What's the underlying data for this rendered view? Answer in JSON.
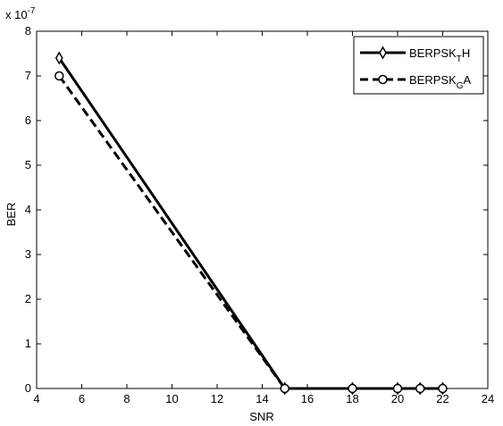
{
  "chart_data": {
    "type": "line",
    "xlabel": "SNR",
    "ylabel": "BER",
    "y_exponent_label": "x 10",
    "y_exponent_power": "-7",
    "xlim": [
      4,
      24
    ],
    "ylim": [
      0,
      8
    ],
    "xticks": [
      "4",
      "6",
      "8",
      "10",
      "12",
      "14",
      "16",
      "18",
      "20",
      "22",
      "24"
    ],
    "yticks": [
      "0",
      "1",
      "2",
      "3",
      "4",
      "5",
      "6",
      "7",
      "8"
    ],
    "grid": false,
    "legend_position": "top-right",
    "series": [
      {
        "name_main": "BERPSK",
        "name_sub": "T",
        "name_tail": "H",
        "line_style": "solid",
        "marker": "diamond",
        "color": "#000000",
        "x": [
          5,
          15,
          18,
          20,
          21,
          22
        ],
        "y": [
          7.4,
          0,
          0,
          0,
          0,
          0
        ]
      },
      {
        "name_main": "BERPSK",
        "name_sub": "G",
        "name_tail": "A",
        "line_style": "dashed",
        "marker": "circle",
        "color": "#000000",
        "x": [
          5,
          15,
          18,
          20,
          21,
          22
        ],
        "y": [
          7.0,
          0,
          0,
          0,
          0,
          0
        ]
      }
    ]
  }
}
